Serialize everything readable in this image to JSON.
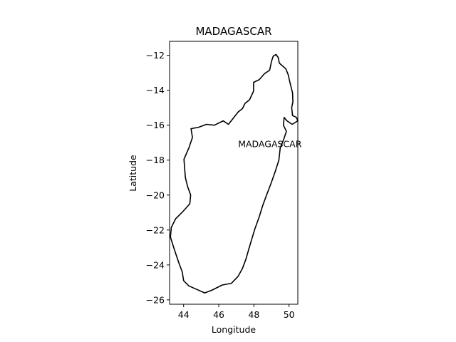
{
  "chart_data": {
    "type": "map",
    "title": "MADAGASCAR",
    "xlabel": "Longitude",
    "ylabel": "Latitude",
    "xlim": [
      43.2,
      50.5
    ],
    "ylim": [
      -26.25,
      -11.2
    ],
    "xticks": [
      44,
      46,
      48,
      50
    ],
    "yticks": [
      -12,
      -14,
      -16,
      -18,
      -20,
      -22,
      -24,
      -26
    ],
    "xtick_labels": [
      "44",
      "46",
      "48",
      "50"
    ],
    "ytick_labels": [
      "−12",
      "−14",
      "−16",
      "−18",
      "−20",
      "−22",
      "−24",
      "−26"
    ],
    "annotation": {
      "text": "MADAGASCAR",
      "lon": 47.1,
      "lat": -17.1
    },
    "outline_color": "#000000",
    "coastline": [
      [
        49.26,
        -11.95
      ],
      [
        49.38,
        -12.12
      ],
      [
        49.45,
        -12.45
      ],
      [
        49.82,
        -12.78
      ],
      [
        49.95,
        -13.1
      ],
      [
        50.05,
        -13.55
      ],
      [
        50.2,
        -14.15
      ],
      [
        50.22,
        -14.65
      ],
      [
        50.15,
        -15.0
      ],
      [
        50.2,
        -15.45
      ],
      [
        50.42,
        -15.55
      ],
      [
        50.5,
        -15.75
      ],
      [
        50.18,
        -15.95
      ],
      [
        49.88,
        -15.75
      ],
      [
        49.72,
        -15.55
      ],
      [
        49.68,
        -16.0
      ],
      [
        49.85,
        -16.35
      ],
      [
        49.7,
        -16.8
      ],
      [
        49.5,
        -17.3
      ],
      [
        49.42,
        -18.0
      ],
      [
        49.2,
        -18.7
      ],
      [
        48.95,
        -19.4
      ],
      [
        48.72,
        -20.0
      ],
      [
        48.5,
        -20.6
      ],
      [
        48.3,
        -21.25
      ],
      [
        48.05,
        -21.95
      ],
      [
        47.9,
        -22.45
      ],
      [
        47.72,
        -23.05
      ],
      [
        47.55,
        -23.65
      ],
      [
        47.35,
        -24.2
      ],
      [
        47.1,
        -24.65
      ],
      [
        46.72,
        -25.05
      ],
      [
        46.2,
        -25.15
      ],
      [
        45.6,
        -25.45
      ],
      [
        45.2,
        -25.6
      ],
      [
        44.75,
        -25.4
      ],
      [
        44.3,
        -25.2
      ],
      [
        44.0,
        -24.9
      ],
      [
        43.92,
        -24.4
      ],
      [
        43.75,
        -23.95
      ],
      [
        43.58,
        -23.45
      ],
      [
        43.42,
        -22.95
      ],
      [
        43.25,
        -22.4
      ],
      [
        43.3,
        -21.85
      ],
      [
        43.55,
        -21.35
      ],
      [
        43.95,
        -20.95
      ],
      [
        44.35,
        -20.5
      ],
      [
        44.4,
        -20.0
      ],
      [
        44.22,
        -19.5
      ],
      [
        44.1,
        -19.0
      ],
      [
        44.05,
        -18.4
      ],
      [
        44.02,
        -17.95
      ],
      [
        44.3,
        -17.3
      ],
      [
        44.5,
        -16.7
      ],
      [
        44.42,
        -16.2
      ],
      [
        44.85,
        -16.12
      ],
      [
        45.3,
        -15.95
      ],
      [
        45.75,
        -16.0
      ],
      [
        46.25,
        -15.75
      ],
      [
        46.55,
        -15.95
      ],
      [
        47.1,
        -15.25
      ],
      [
        47.35,
        -15.05
      ],
      [
        47.5,
        -14.75
      ],
      [
        47.75,
        -14.55
      ],
      [
        47.98,
        -14.05
      ],
      [
        47.98,
        -13.55
      ],
      [
        48.3,
        -13.4
      ],
      [
        48.6,
        -13.05
      ],
      [
        48.9,
        -12.85
      ],
      [
        49.0,
        -12.35
      ],
      [
        49.1,
        -12.05
      ],
      [
        49.26,
        -11.95
      ]
    ]
  }
}
